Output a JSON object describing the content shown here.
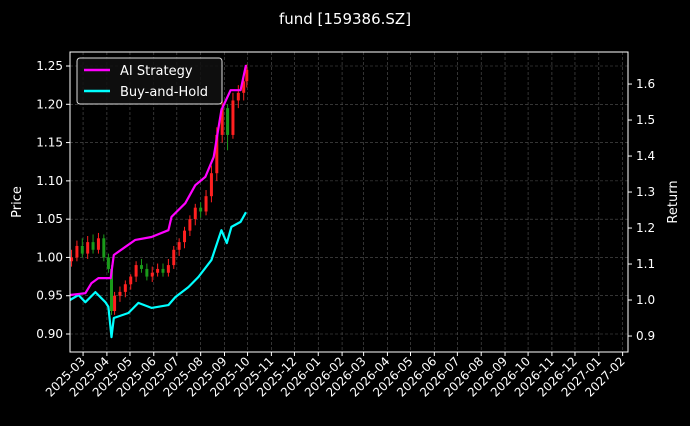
{
  "chart_data": {
    "type": "line",
    "title": "fund [159386.SZ]",
    "ylabel_left": "Price",
    "ylabel_right": "Return",
    "xlim": [
      "2025-02-12",
      "2027-02-08"
    ],
    "ylim_left": [
      0.8765,
      1.2683
    ],
    "ylim_right": [
      0.8556,
      1.689
    ],
    "grid": true,
    "legend_placement": "upper-left",
    "x_ticks": [
      "2025-03",
      "2025-04",
      "2025-05",
      "2025-06",
      "2025-07",
      "2025-08",
      "2025-09",
      "2025-10",
      "2025-11",
      "2025-12",
      "2026-01",
      "2026-02",
      "2026-03",
      "2026-04",
      "2026-05",
      "2026-06",
      "2026-07",
      "2026-08",
      "2026-09",
      "2026-10",
      "2026-11",
      "2026-12",
      "2027-01",
      "2027-02"
    ],
    "y_ticks_left": [
      "0.90",
      "0.95",
      "1.00",
      "1.05",
      "1.10",
      "1.15",
      "1.20",
      "1.25"
    ],
    "y_ticks_right": [
      "0.9",
      "1.0",
      "1.1",
      "1.2",
      "1.3",
      "1.4",
      "1.5",
      "1.6"
    ],
    "colors": {
      "background": "#000000",
      "up": "#ff2020",
      "down": "#1a9a1a",
      "strategy": "#ff00ff",
      "buy_hold": "#00ffff",
      "grid": "#555555"
    },
    "price_candles": {
      "dates": [
        "2025-02-14",
        "2025-02-21",
        "2025-02-28",
        "2025-03-07",
        "2025-03-14",
        "2025-03-21",
        "2025-03-28",
        "2025-04-03",
        "2025-04-07",
        "2025-04-11",
        "2025-04-18",
        "2025-04-25",
        "2025-05-02",
        "2025-05-09",
        "2025-05-16",
        "2025-05-23",
        "2025-05-30",
        "2025-06-06",
        "2025-06-13",
        "2025-06-20",
        "2025-06-27",
        "2025-07-04",
        "2025-07-11",
        "2025-07-18",
        "2025-07-25",
        "2025-08-01",
        "2025-08-08",
        "2025-08-15",
        "2025-08-22",
        "2025-08-29",
        "2025-09-05",
        "2025-09-12",
        "2025-09-19",
        "2025-09-26",
        "2025-09-30"
      ],
      "open": [
        0.995,
        1.0,
        1.015,
        1.005,
        1.02,
        1.01,
        1.025,
        1.0,
        0.985,
        0.93,
        0.95,
        0.955,
        0.965,
        0.975,
        0.99,
        0.985,
        0.975,
        0.98,
        0.985,
        0.98,
        0.99,
        1.01,
        1.02,
        1.035,
        1.05,
        1.065,
        1.06,
        1.08,
        1.11,
        1.16,
        1.195,
        1.16,
        1.205,
        1.215,
        1.23
      ],
      "high": [
        1.01,
        1.022,
        1.025,
        1.028,
        1.03,
        1.032,
        1.03,
        1.005,
        0.99,
        0.955,
        0.962,
        0.97,
        0.978,
        0.995,
        0.998,
        0.992,
        0.988,
        0.992,
        0.992,
        0.998,
        1.015,
        1.025,
        1.04,
        1.055,
        1.07,
        1.072,
        1.088,
        1.12,
        1.17,
        1.205,
        1.2,
        1.215,
        1.225,
        1.24,
        1.252
      ],
      "low": [
        0.988,
        0.995,
        1.0,
        0.998,
        1.005,
        1.005,
        0.995,
        0.98,
        0.925,
        0.925,
        0.942,
        0.948,
        0.958,
        0.968,
        0.98,
        0.97,
        0.968,
        0.975,
        0.975,
        0.975,
        0.985,
        1.002,
        1.012,
        1.028,
        1.042,
        1.052,
        1.055,
        1.072,
        1.1,
        1.15,
        1.14,
        1.155,
        1.195,
        1.205,
        1.222
      ],
      "close": [
        1.0,
        1.015,
        1.005,
        1.02,
        1.01,
        1.025,
        1.0,
        0.985,
        0.93,
        0.95,
        0.955,
        0.965,
        0.975,
        0.99,
        0.985,
        0.975,
        0.98,
        0.985,
        0.98,
        0.99,
        1.01,
        1.02,
        1.035,
        1.05,
        1.065,
        1.06,
        1.08,
        1.11,
        1.16,
        1.195,
        1.16,
        1.205,
        1.215,
        1.23,
        1.245
      ]
    },
    "series": [
      {
        "name": "AI Strategy",
        "axis": "right",
        "dates": [
          "2025-02-12",
          "2025-03-04",
          "2025-03-12",
          "2025-03-21",
          "2025-04-06",
          "2025-04-10",
          "2025-05-08",
          "2025-05-29",
          "2025-06-20",
          "2025-06-24",
          "2025-07-12",
          "2025-07-25",
          "2025-08-07",
          "2025-08-18",
          "2025-08-28",
          "2025-09-09",
          "2025-09-22",
          "2025-09-29"
        ],
        "values": [
          1.014,
          1.019,
          1.047,
          1.061,
          1.061,
          1.125,
          1.167,
          1.175,
          1.194,
          1.231,
          1.269,
          1.319,
          1.342,
          1.397,
          1.528,
          1.583,
          1.583,
          1.653
        ]
      },
      {
        "name": "Buy-and-Hold",
        "axis": "right",
        "dates": [
          "2025-02-12",
          "2025-02-23",
          "2025-03-04",
          "2025-03-17",
          "2025-03-30",
          "2025-04-03",
          "2025-04-07",
          "2025-04-10",
          "2025-04-29",
          "2025-05-12",
          "2025-05-29",
          "2025-06-20",
          "2025-06-29",
          "2025-07-16",
          "2025-07-29",
          "2025-08-15",
          "2025-08-28",
          "2025-09-04",
          "2025-09-10",
          "2025-09-22",
          "2025-09-29"
        ],
        "values": [
          1.0,
          1.014,
          0.994,
          1.022,
          0.994,
          0.981,
          0.897,
          0.95,
          0.964,
          0.992,
          0.978,
          0.986,
          1.008,
          1.036,
          1.064,
          1.111,
          1.194,
          1.158,
          1.203,
          1.217,
          1.244
        ]
      }
    ]
  }
}
